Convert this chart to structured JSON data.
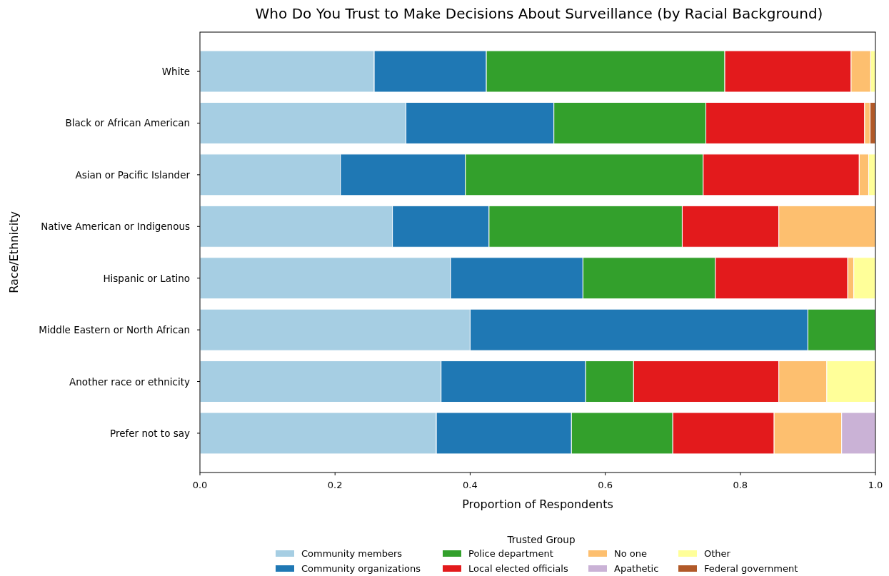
{
  "chart_data": {
    "type": "bar",
    "orientation": "horizontal",
    "stacked": true,
    "title": "Who Do You Trust to Make Decisions About Surveillance (by Racial Background)",
    "xlabel": "Proportion of Respondents",
    "ylabel": "Race/Ethnicity",
    "legend_title": "Trusted Group",
    "legend": "bottom",
    "grid": false,
    "categories": [
      "White",
      "Black or African American",
      "Asian or Pacific Islander",
      "Native American or Indigenous",
      "Hispanic or Latino",
      "Middle Eastern or North African",
      "Another race or ethnicity",
      "Prefer not to say"
    ],
    "xlim": [
      0,
      1
    ],
    "xticks": [
      {
        "value": 0,
        "label": "0.0"
      },
      0.2,
      0.4,
      0.6,
      0.8,
      {
        "value": 1,
        "label": "1.0"
      }
    ],
    "series": [
      {
        "name": "Community members",
        "color": "#a6cee3",
        "values": [
          0.258,
          0.305,
          0.208,
          0.285,
          0.371,
          0.4,
          0.357,
          0.35
        ]
      },
      {
        "name": "Community organizations",
        "color": "#1f78b4",
        "values": [
          0.166,
          0.219,
          0.185,
          0.143,
          0.196,
          0.5,
          0.214,
          0.2
        ]
      },
      {
        "name": "Police department",
        "color": "#33a02c",
        "values": [
          0.353,
          0.225,
          0.352,
          0.286,
          0.196,
          0.1,
          0.071,
          0.15
        ]
      },
      {
        "name": "Local elected officials",
        "color": "#e31a1c",
        "values": [
          0.187,
          0.235,
          0.231,
          0.143,
          0.196,
          0,
          0.215,
          0.15
        ]
      },
      {
        "name": "No one",
        "color": "#fdbf6f",
        "values": [
          0.029,
          0.008,
          0.014,
          0.143,
          0.009,
          0,
          0.071,
          0.1
        ]
      },
      {
        "name": "Apathetic",
        "color": "#cab2d6",
        "values": [
          0,
          0,
          0,
          0,
          0,
          0,
          0,
          0.05
        ]
      },
      {
        "name": "Other",
        "color": "#ffff99",
        "values": [
          0.007,
          0,
          0.01,
          0,
          0.032,
          0,
          0.072,
          0
        ]
      },
      {
        "name": "Federal government",
        "color": "#b15928",
        "values": [
          0,
          0.008,
          0,
          0,
          0,
          0,
          0,
          0
        ]
      }
    ]
  }
}
